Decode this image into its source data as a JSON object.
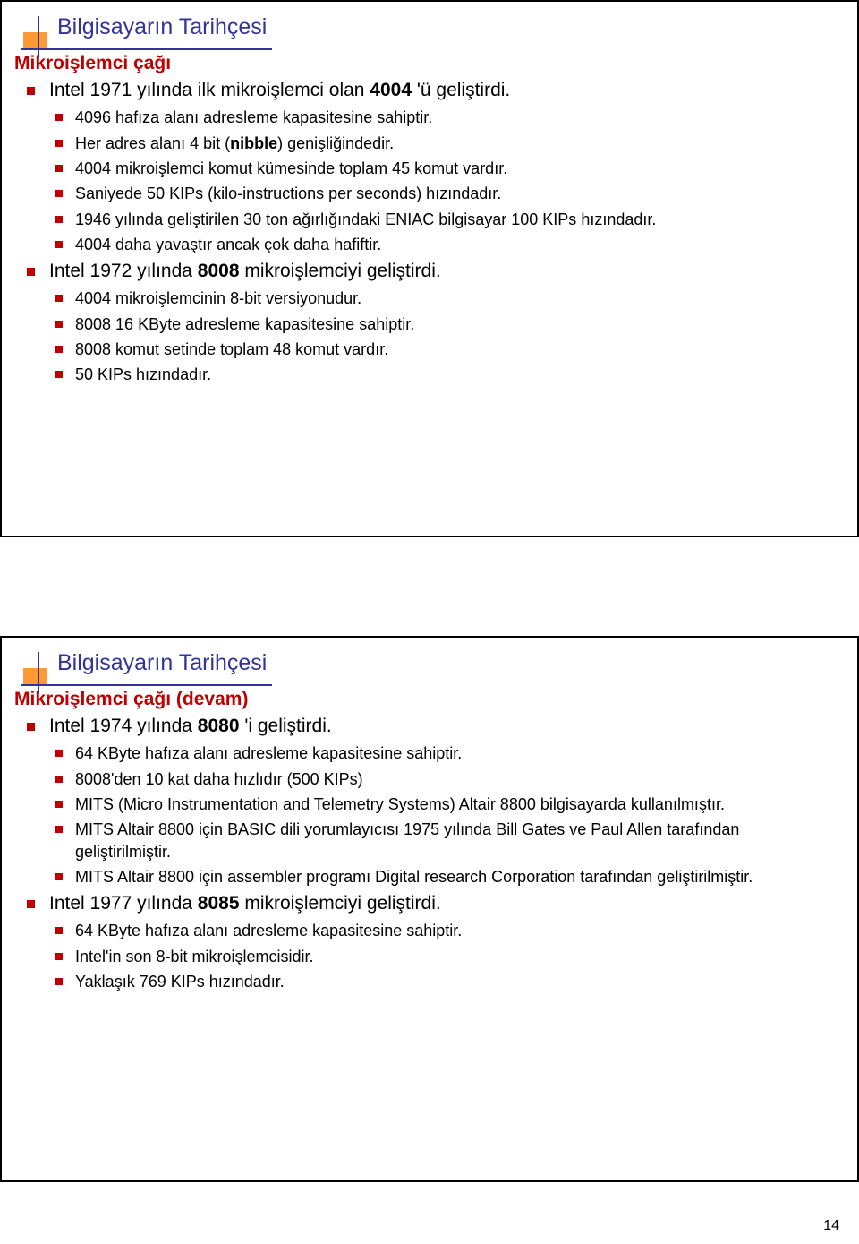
{
  "colors": {
    "title": "#333399",
    "subtitle": "#c00000",
    "bullet": "#c00000",
    "text": "#000000",
    "accent_bg": "#ff9933"
  },
  "page_number": "14",
  "slide1": {
    "title": "Bilgisayarın Tarihçesi",
    "subtitle": "Mikroişlemci çağı",
    "items": [
      {
        "level": 0,
        "prefix": "Intel 1971 yılında ilk mikroişlemci olan ",
        "bold": "4004",
        "suffix": " 'ü geliştirdi."
      },
      {
        "level": 1,
        "prefix": "4096 hafıza alanı adresleme kapasitesine sahiptir.",
        "bold": "",
        "suffix": ""
      },
      {
        "level": 1,
        "prefix": "Her adres alanı 4 bit (",
        "bold": "nibble",
        "suffix": ") genişliğindedir."
      },
      {
        "level": 1,
        "prefix": "4004 mikroişlemci komut kümesinde toplam 45 komut vardır.",
        "bold": "",
        "suffix": ""
      },
      {
        "level": 1,
        "prefix": "Saniyede 50 KIPs (kilo-instructions per seconds) hızındadır.",
        "bold": "",
        "suffix": ""
      },
      {
        "level": 1,
        "prefix": "1946 yılında geliştirilen 30 ton ağırlığındaki ENIAC bilgisayar 100 KIPs hızındadır.",
        "bold": "",
        "suffix": ""
      },
      {
        "level": 1,
        "prefix": "4004 daha yavaştır ancak çok daha hafiftir.",
        "bold": "",
        "suffix": ""
      },
      {
        "level": 0,
        "prefix": "Intel 1972 yılında ",
        "bold": "8008",
        "suffix": " mikroişlemciyi geliştirdi."
      },
      {
        "level": 1,
        "prefix": "4004 mikroişlemcinin 8-bit versiyonudur.",
        "bold": "",
        "suffix": ""
      },
      {
        "level": 1,
        "prefix": "8008 16 KByte adresleme kapasitesine sahiptir.",
        "bold": "",
        "suffix": ""
      },
      {
        "level": 1,
        "prefix": "8008 komut setinde toplam 48 komut vardır.",
        "bold": "",
        "suffix": ""
      },
      {
        "level": 1,
        "prefix": "50 KIPs hızındadır.",
        "bold": "",
        "suffix": ""
      }
    ]
  },
  "slide2": {
    "title": "Bilgisayarın Tarihçesi",
    "subtitle": "Mikroişlemci çağı (devam)",
    "items": [
      {
        "level": 0,
        "prefix": "Intel 1974 yılında ",
        "bold": "8080",
        "suffix": " 'i geliştirdi."
      },
      {
        "level": 1,
        "prefix": "64 KByte hafıza alanı adresleme kapasitesine sahiptir.",
        "bold": "",
        "suffix": ""
      },
      {
        "level": 1,
        "prefix": "8008'den 10 kat daha hızlıdır (500 KIPs)",
        "bold": "",
        "suffix": ""
      },
      {
        "level": 1,
        "prefix": "MITS (Micro Instrumentation and Telemetry Systems) Altair 8800 bilgisayarda kullanılmıştır.",
        "bold": "",
        "suffix": ""
      },
      {
        "level": 1,
        "prefix": "MITS Altair 8800 için BASIC dili yorumlayıcısı 1975 yılında Bill Gates ve Paul Allen tarafından geliştirilmiştir.",
        "bold": "",
        "suffix": ""
      },
      {
        "level": 1,
        "prefix": "MITS Altair 8800 için assembler programı Digital research Corporation tarafından geliştirilmiştir.",
        "bold": "",
        "suffix": ""
      },
      {
        "level": 0,
        "prefix": "Intel 1977 yılında ",
        "bold": "8085",
        "suffix": " mikroişlemciyi geliştirdi."
      },
      {
        "level": 1,
        "prefix": "64 KByte hafıza alanı adresleme kapasitesine sahiptir.",
        "bold": "",
        "suffix": ""
      },
      {
        "level": 1,
        "prefix": "Intel'in son 8-bit mikroişlemcisidir.",
        "bold": "",
        "suffix": ""
      },
      {
        "level": 1,
        "prefix": "Yaklaşık 769 KIPs hızındadır.",
        "bold": "",
        "suffix": ""
      }
    ]
  }
}
